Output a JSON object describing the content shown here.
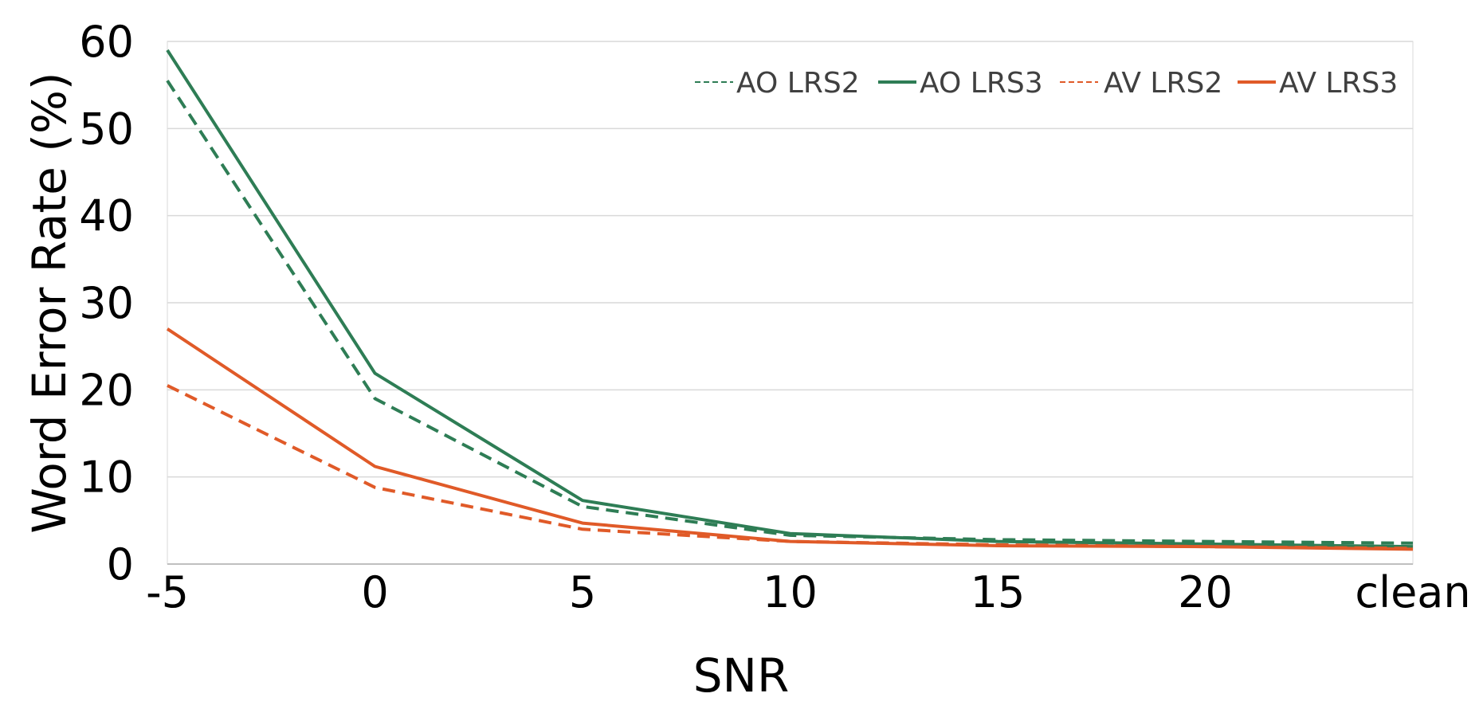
{
  "chart_data": {
    "type": "line",
    "xlabel": "SNR",
    "ylabel": "Word Error Rate (%)",
    "categories": [
      "-5",
      "0",
      "5",
      "10",
      "15",
      "20",
      "clean"
    ],
    "ylim": [
      0,
      60
    ],
    "yticks": [
      "0",
      "10",
      "20",
      "30",
      "40",
      "50",
      "60"
    ],
    "grid": "horizontal",
    "legend_position": "top-right",
    "series": [
      {
        "name": "AO LRS2",
        "values": [
          55.5,
          19.0,
          6.6,
          3.3,
          2.8,
          2.6,
          2.4
        ],
        "color": "#2e7d55",
        "dash": "dashed"
      },
      {
        "name": "AO LRS3",
        "values": [
          59.0,
          21.9,
          7.3,
          3.5,
          2.6,
          2.3,
          2.0
        ],
        "color": "#2e7d55",
        "dash": "solid"
      },
      {
        "name": "AV LRS2",
        "values": [
          20.5,
          8.8,
          4.0,
          2.6,
          2.2,
          2.0,
          1.8
        ],
        "color": "#e05a28",
        "dash": "dashed"
      },
      {
        "name": "AV LRS3",
        "values": [
          27.0,
          11.2,
          4.7,
          2.6,
          2.1,
          2.0,
          1.7
        ],
        "color": "#e05a28",
        "dash": "solid"
      }
    ]
  }
}
